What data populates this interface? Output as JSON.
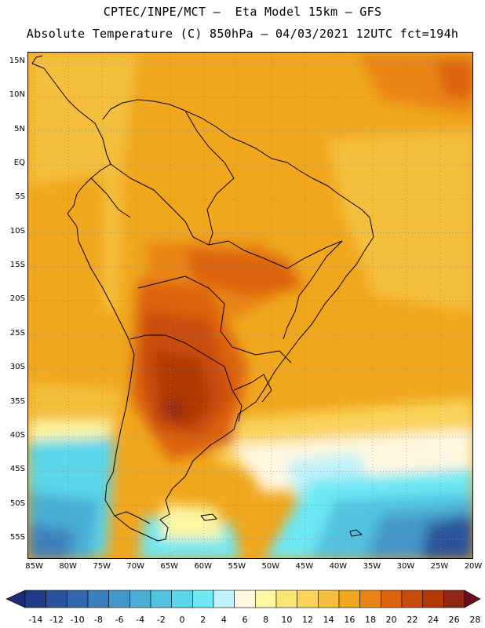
{
  "header": {
    "line1": "CPTEC/INPE/MCT –  Eta Model 15km – GFS",
    "line2": "Absolute Temperature (C) 850hPa – 04/03/2021 12UTC fct=194h"
  },
  "axes": {
    "lat_labels": [
      "15N",
      "10N",
      "5N",
      "EQ",
      "5S",
      "10S",
      "15S",
      "20S",
      "25S",
      "30S",
      "35S",
      "40S",
      "45S",
      "50S",
      "55S"
    ],
    "lat_values": [
      15,
      10,
      5,
      0,
      -5,
      -10,
      -15,
      -20,
      -25,
      -30,
      -35,
      -40,
      -45,
      -50,
      -55
    ],
    "lon_labels": [
      "85W",
      "80W",
      "75W",
      "70W",
      "65W",
      "60W",
      "55W",
      "50W",
      "45W",
      "40W",
      "35W",
      "30W",
      "25W",
      "20W"
    ],
    "lon_values": [
      -85,
      -80,
      -75,
      -70,
      -65,
      -60,
      -55,
      -50,
      -45,
      -40,
      -35,
      -30,
      -25,
      -20
    ],
    "lat_range": [
      -58,
      16.5
    ],
    "lon_range": [
      -86,
      -20
    ]
  },
  "colorbar": {
    "labels": [
      "-14",
      "-12",
      "-10",
      "-8",
      "-6",
      "-4",
      "-2",
      "0",
      "2",
      "4",
      "6",
      "8",
      "10",
      "12",
      "14",
      "16",
      "18",
      "20",
      "22",
      "24",
      "26",
      "28"
    ],
    "low_color": "#1c2a78",
    "high_color": "#6a0f1a",
    "colors": [
      "#1f3c88",
      "#2a539c",
      "#3468ac",
      "#3c7fbd",
      "#4597c9",
      "#4aaed5",
      "#52c2e0",
      "#5bd6ea",
      "#6ee8f4",
      "#bff2fb",
      "#fff7e0",
      "#fdf6a3",
      "#fbe476",
      "#f9d35a",
      "#f4bf3c",
      "#f0a71e",
      "#e98512",
      "#dd620c",
      "#c94b0a",
      "#b23806",
      "#8f2712"
    ],
    "unit": "C"
  },
  "palette": {
    "land_line": "#000000",
    "grid_line": "#8a8a8a"
  }
}
